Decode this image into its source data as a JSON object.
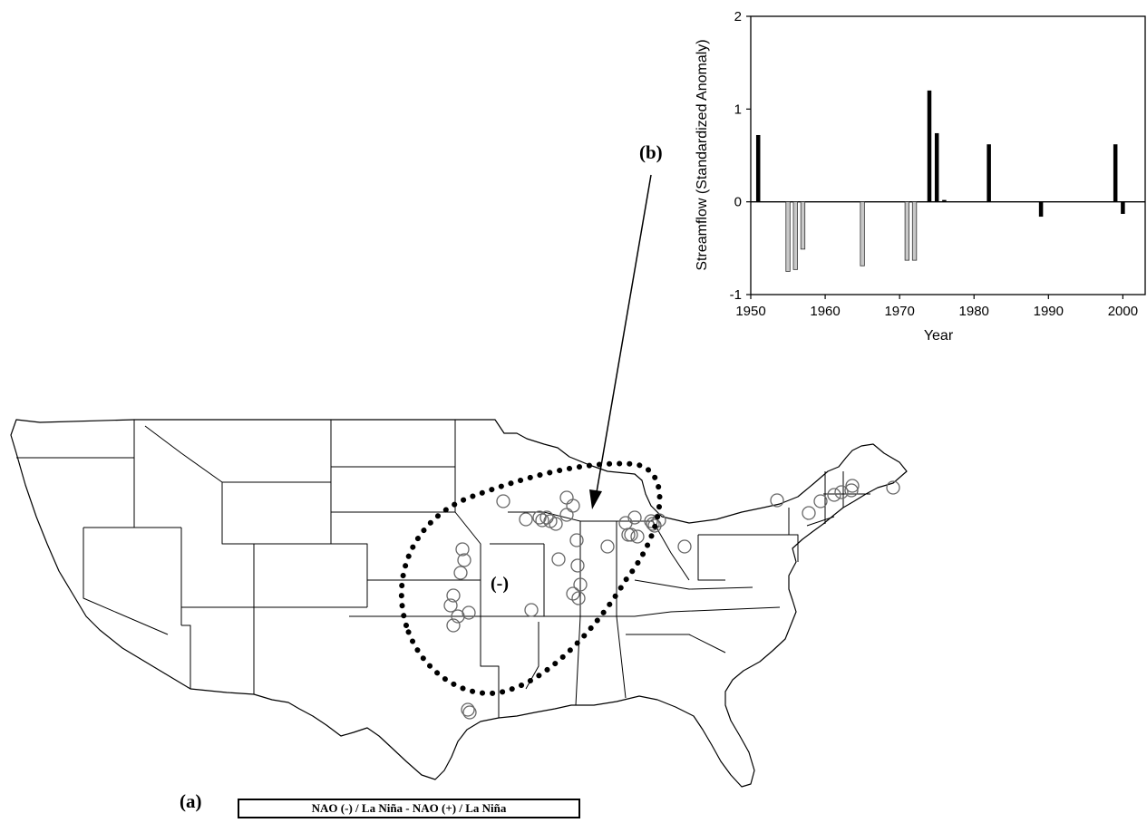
{
  "labels": {
    "panel_a": "(a)",
    "panel_b": "(b)",
    "region_sign": "(-)",
    "map_legend": "NAO (-) / La Niña - NAO (+) / La Niña"
  },
  "colors": {
    "positive_bar": "#000000",
    "negative_bar": "#c8c8c8",
    "station_marker": "#666666",
    "map_lines": "#000000"
  },
  "chart_data": [
    {
      "type": "bar",
      "xlabel": "Year",
      "ylabel": "Streamflow (Standardized Anomaly)",
      "xlim": [
        1950,
        2003
      ],
      "ylim": [
        -1,
        2
      ],
      "xticks": [
        1950,
        1960,
        1970,
        1980,
        1990,
        2000
      ],
      "yticks": [
        -1,
        0,
        1,
        2
      ],
      "grid": false,
      "series": [
        {
          "kind": "positive",
          "x": [
            1951,
            1974,
            1975,
            1976,
            1982,
            1989,
            1999,
            2000
          ],
          "values": [
            0.72,
            1.2,
            0.74,
            0.02,
            0.62,
            -0.16,
            0.62,
            -0.13
          ]
        },
        {
          "kind": "negative",
          "x": [
            1955,
            1956,
            1957,
            1965,
            1971,
            1972
          ],
          "values": [
            -0.75,
            -0.73,
            -0.51,
            -0.69,
            -0.63,
            -0.63
          ]
        }
      ]
    }
  ],
  "map": {
    "region": "contiguous United States",
    "station_count": 46
  }
}
